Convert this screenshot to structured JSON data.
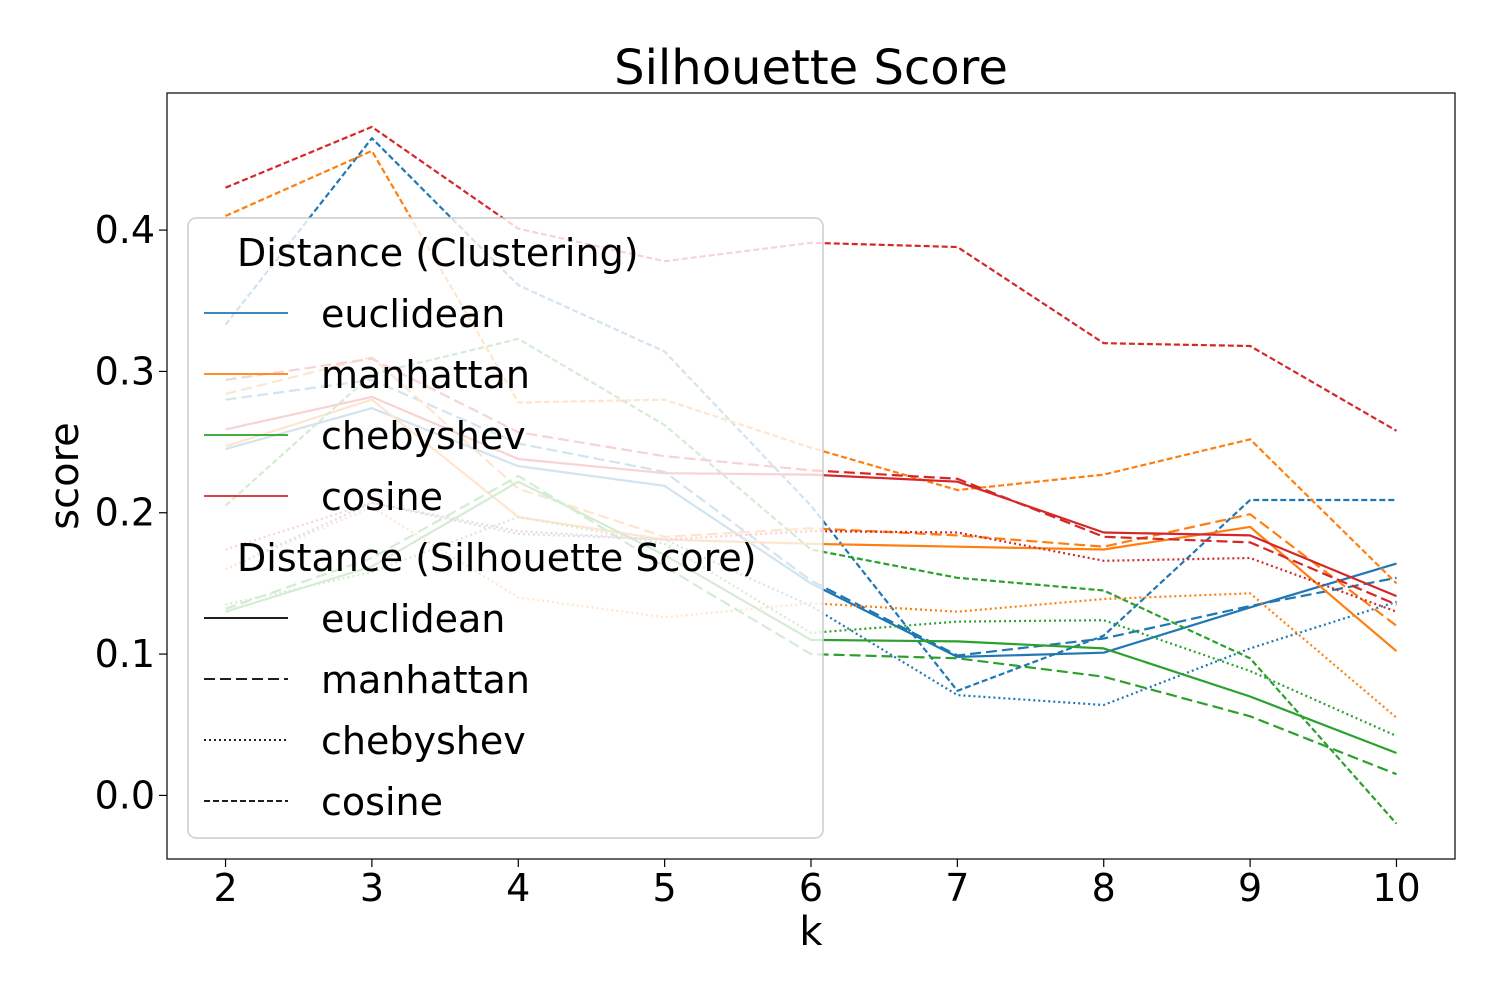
{
  "chart_data": {
    "type": "line",
    "title": "Silhouette Score",
    "xlabel": "k",
    "ylabel": "score",
    "x": [
      2,
      3,
      4,
      5,
      6,
      7,
      8,
      9,
      10
    ],
    "xlim": [
      1.6,
      10.4
    ],
    "ylim": [
      -0.045,
      0.497
    ],
    "xticks": [
      "2",
      "3",
      "4",
      "5",
      "6",
      "7",
      "8",
      "9",
      "10"
    ],
    "yticks": [
      0.0,
      0.1,
      0.2,
      0.3,
      0.4
    ],
    "ytick_labels": [
      "0.0",
      "0.1",
      "0.2",
      "0.3",
      "0.4"
    ],
    "grid": false,
    "legend_position": "center-left",
    "clustering_colors": {
      "euclidean": "#1f77b4",
      "manhattan": "#ff7f0e",
      "chebyshev": "#2ca02c",
      "cosine": "#d62728"
    },
    "score_dash": {
      "euclidean": "solid",
      "manhattan": "dashed",
      "chebyshev": "dotted",
      "cosine": "densely-dashed"
    },
    "series": [
      {
        "clustering": "euclidean",
        "score": "euclidean",
        "values": [
          0.245,
          0.274,
          0.233,
          0.219,
          0.15,
          0.098,
          0.101,
          0.133,
          0.164
        ]
      },
      {
        "clustering": "euclidean",
        "score": "manhattan",
        "values": [
          0.28,
          0.294,
          0.249,
          0.229,
          0.152,
          0.099,
          0.111,
          0.134,
          0.154
        ]
      },
      {
        "clustering": "euclidean",
        "score": "chebyshev",
        "values": [
          0.16,
          0.207,
          0.185,
          0.181,
          0.134,
          0.071,
          0.064,
          0.104,
          0.137
        ]
      },
      {
        "clustering": "euclidean",
        "score": "cosine",
        "values": [
          0.333,
          0.465,
          0.361,
          0.314,
          0.205,
          0.074,
          0.113,
          0.209,
          0.209
        ]
      },
      {
        "clustering": "manhattan",
        "score": "euclidean",
        "values": [
          0.247,
          0.28,
          0.197,
          0.181,
          0.178,
          0.176,
          0.174,
          0.19,
          0.102
        ]
      },
      {
        "clustering": "manhattan",
        "score": "manhattan",
        "values": [
          0.284,
          0.31,
          0.217,
          0.183,
          0.189,
          0.184,
          0.176,
          0.199,
          0.12
        ]
      },
      {
        "clustering": "manhattan",
        "score": "chebyshev",
        "values": [
          0.16,
          0.204,
          0.14,
          0.126,
          0.136,
          0.13,
          0.139,
          0.143,
          0.055
        ]
      },
      {
        "clustering": "manhattan",
        "score": "cosine",
        "values": [
          0.41,
          0.456,
          0.278,
          0.28,
          0.246,
          0.216,
          0.227,
          0.252,
          0.15
        ]
      },
      {
        "clustering": "chebyshev",
        "score": "euclidean",
        "values": [
          0.13,
          0.162,
          0.222,
          0.17,
          0.11,
          0.109,
          0.104,
          0.07,
          0.03
        ]
      },
      {
        "clustering": "chebyshev",
        "score": "manhattan",
        "values": [
          0.132,
          0.168,
          0.226,
          0.162,
          0.1,
          0.097,
          0.084,
          0.056,
          0.015
        ]
      },
      {
        "clustering": "chebyshev",
        "score": "chebyshev",
        "values": [
          0.135,
          0.158,
          0.197,
          0.178,
          0.115,
          0.123,
          0.124,
          0.088,
          0.042
        ]
      },
      {
        "clustering": "chebyshev",
        "score": "cosine",
        "values": [
          0.205,
          0.298,
          0.323,
          0.262,
          0.174,
          0.154,
          0.145,
          0.097,
          -0.02
        ]
      },
      {
        "clustering": "cosine",
        "score": "euclidean",
        "values": [
          0.259,
          0.282,
          0.238,
          0.228,
          0.227,
          0.222,
          0.186,
          0.184,
          0.141
        ]
      },
      {
        "clustering": "cosine",
        "score": "manhattan",
        "values": [
          0.294,
          0.309,
          0.257,
          0.24,
          0.23,
          0.224,
          0.183,
          0.179,
          0.135
        ]
      },
      {
        "clustering": "cosine",
        "score": "chebyshev",
        "values": [
          0.174,
          0.207,
          0.187,
          0.181,
          0.187,
          0.186,
          0.166,
          0.168,
          0.13
        ]
      },
      {
        "clustering": "cosine",
        "score": "cosine",
        "values": [
          0.43,
          0.473,
          0.401,
          0.378,
          0.391,
          0.388,
          0.32,
          0.318,
          0.258
        ]
      }
    ],
    "legend": {
      "sections": [
        {
          "title": "Distance (Clustering)",
          "entries": [
            {
              "label": "euclidean",
              "color_of": "euclidean",
              "dash": "solid"
            },
            {
              "label": "manhattan",
              "color_of": "manhattan",
              "dash": "solid"
            },
            {
              "label": "chebyshev",
              "color_of": "chebyshev",
              "dash": "solid"
            },
            {
              "label": "cosine",
              "color_of": "cosine",
              "dash": "solid"
            }
          ]
        },
        {
          "title": "Distance (Silhouette Score)",
          "entries": [
            {
              "label": "euclidean",
              "color_of": "black",
              "dash": "solid"
            },
            {
              "label": "manhattan",
              "color_of": "black",
              "dash": "dashed"
            },
            {
              "label": "chebyshev",
              "color_of": "black",
              "dash": "dotted"
            },
            {
              "label": "cosine",
              "color_of": "black",
              "dash": "densely-dashed"
            }
          ]
        }
      ]
    }
  }
}
